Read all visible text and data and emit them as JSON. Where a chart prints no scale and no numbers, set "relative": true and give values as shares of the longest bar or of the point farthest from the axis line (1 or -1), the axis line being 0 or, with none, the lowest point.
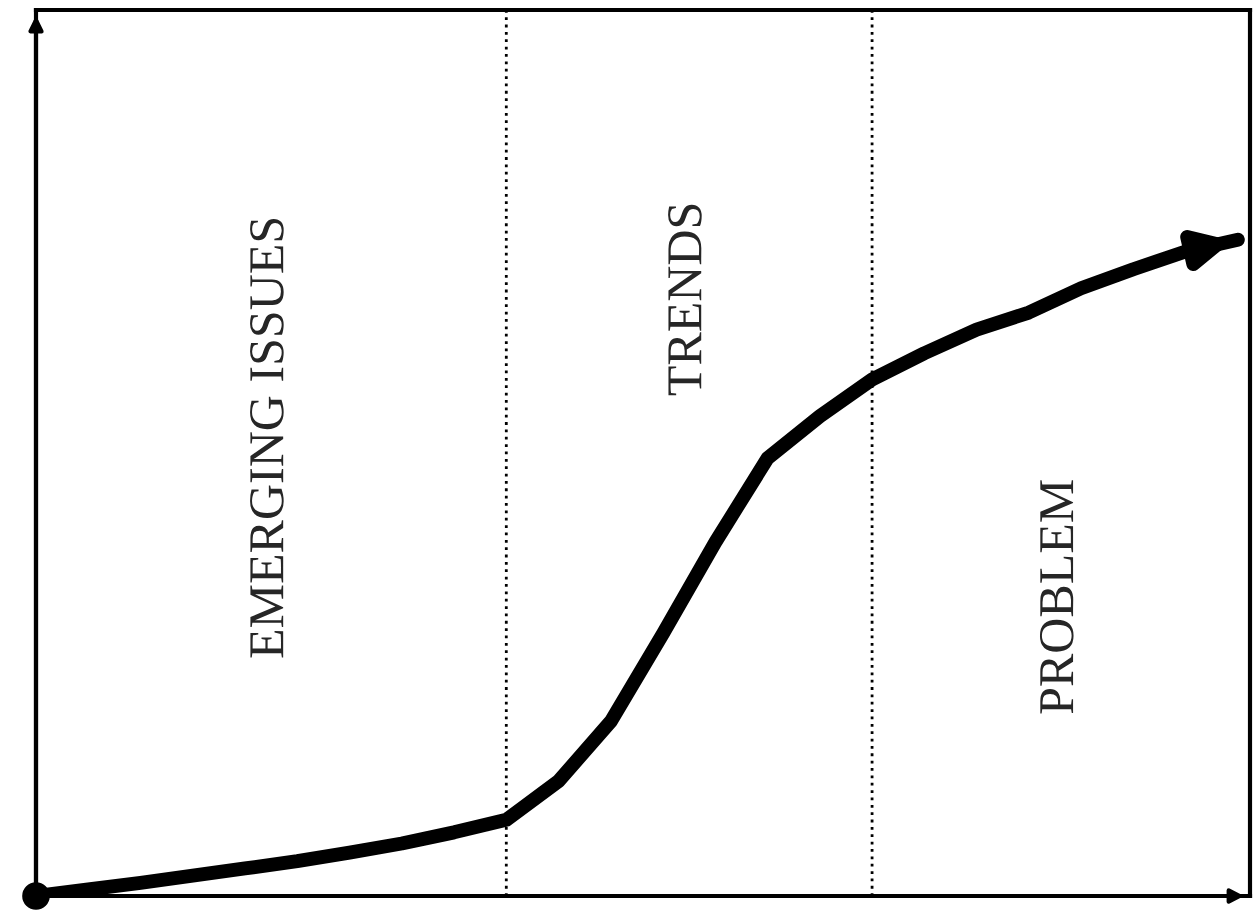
{
  "chart_data": {
    "type": "line",
    "relative": true,
    "legend": false,
    "marker": "none",
    "line_style": "solid",
    "categories": [
      null,
      null,
      null,
      null,
      null,
      null,
      null,
      null,
      null,
      null,
      null,
      null,
      null,
      null,
      null,
      null,
      null,
      null,
      null,
      null,
      null,
      null,
      null,
      null
    ],
    "series": [
      {
        "color": "#000000",
        "values": [
          0,
          0.01,
          0.02,
          0.031,
          0.042,
          0.053,
          0.066,
          0.08,
          0.097,
          0.116,
          0.175,
          0.266,
          0.4,
          0.539,
          0.667,
          0.731,
          0.787,
          0.827,
          0.863,
          0.889,
          0.926,
          0.955,
          0.982,
          1.0
        ]
      }
    ],
    "annotations": [
      "EMERGING ISSUES",
      "TRENDS",
      "PROBLEM"
    ]
  }
}
